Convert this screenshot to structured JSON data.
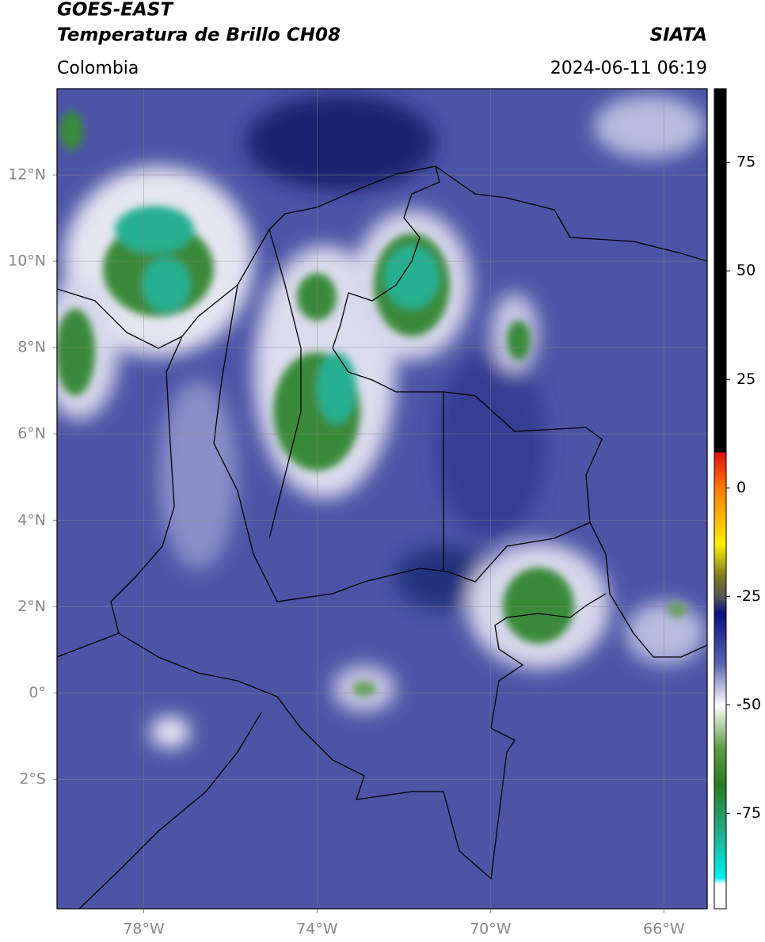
{
  "header": {
    "title_line1": "GOES-EAST",
    "title_line2": "Temperatura de Brillo CH08",
    "source": "SIATA",
    "region": "Colombia",
    "datetime": "2024-06-11 06:19"
  },
  "map": {
    "lonlim": [
      -80,
      -65
    ],
    "latlim": [
      -5,
      14
    ],
    "lon_ticks": [
      {
        "value": -78,
        "label": "78°W"
      },
      {
        "value": -74,
        "label": "74°W"
      },
      {
        "value": -70,
        "label": "70°W"
      },
      {
        "value": -66,
        "label": "66°W"
      }
    ],
    "lat_ticks": [
      {
        "value": 12,
        "label": "12°N"
      },
      {
        "value": 10,
        "label": "10°N"
      },
      {
        "value": 8,
        "label": "8°N"
      },
      {
        "value": 6,
        "label": "6°N"
      },
      {
        "value": 4,
        "label": "4°N"
      },
      {
        "value": 2,
        "label": "2°N"
      },
      {
        "value": 0,
        "label": "0°"
      },
      {
        "value": -2,
        "label": "2°S"
      }
    ],
    "grid": true
  },
  "colorbar": {
    "lim": [
      -97,
      92
    ],
    "ticks": [
      75,
      50,
      25,
      0,
      -25,
      -50,
      -75
    ]
  }
}
